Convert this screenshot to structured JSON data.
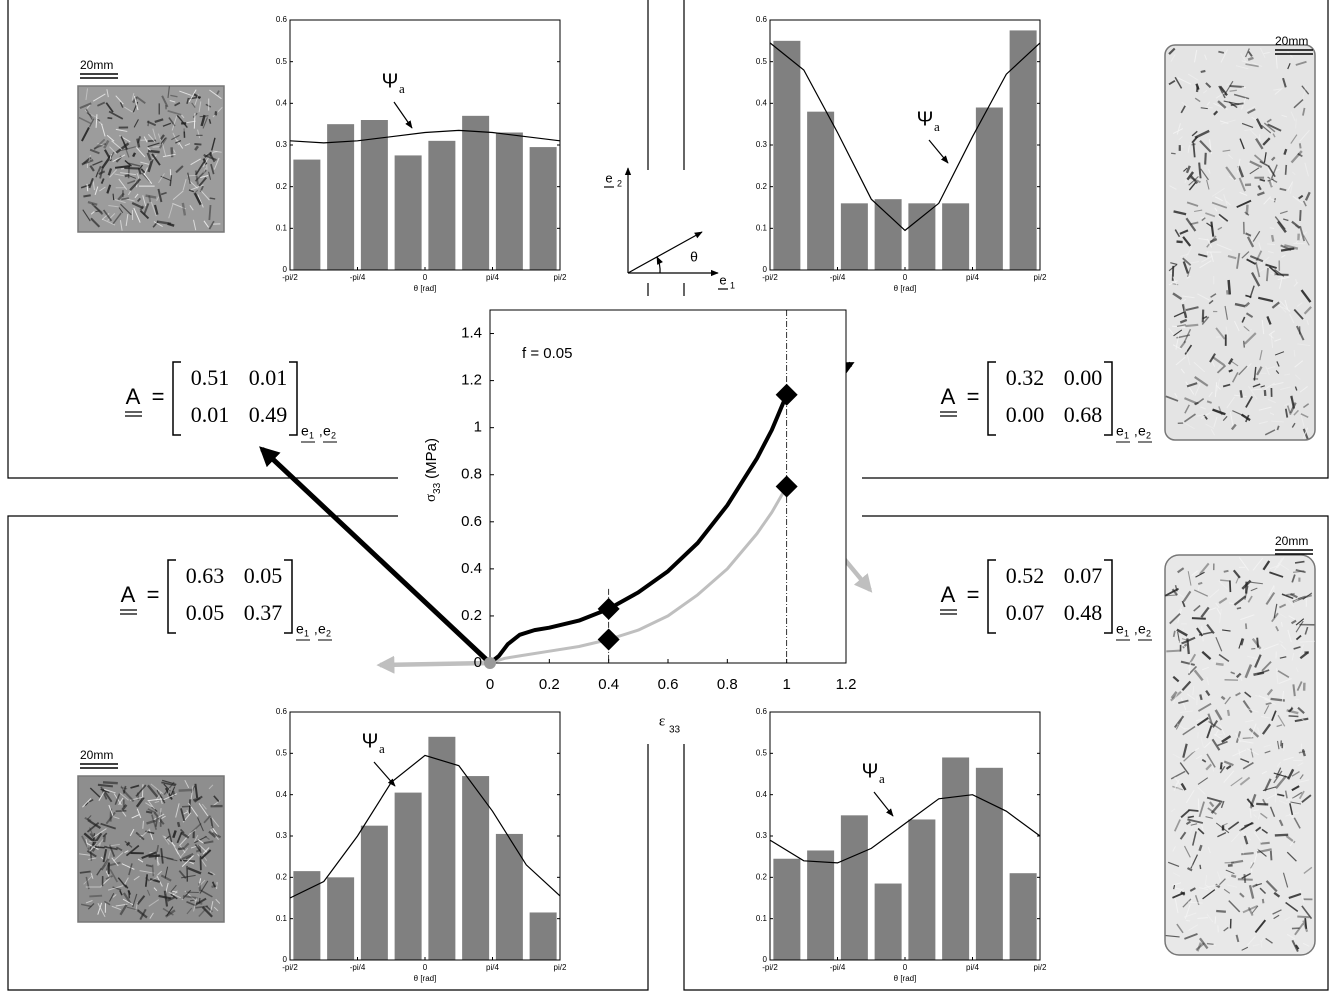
{
  "chart_data": [
    {
      "type": "histogram",
      "xlabel": "θ [rad]",
      "color": "#808080",
      "curve_color": "#000000",
      "annotation": "Ψ",
      "annotation_sub": "a",
      "bins": [
        -1.5708,
        -1.1781,
        -0.7854,
        -0.3927,
        0,
        0.3927,
        0.7854,
        1.1781,
        1.5708
      ],
      "values": [
        0.265,
        0.35,
        0.36,
        0.275,
        0.31,
        0.37,
        0.33,
        0.295
      ],
      "curve": {
        "x": [
          -1.5708,
          -1.1781,
          -0.7854,
          -0.3927,
          0,
          0.3927,
          0.7854,
          1.1781,
          1.5708
        ],
        "values": [
          0.31,
          0.305,
          0.31,
          0.32,
          0.33,
          0.335,
          0.33,
          0.32,
          0.31
        ]
      },
      "xlim": [
        -1.5708,
        1.5708
      ],
      "ylim": [
        0,
        0.6
      ],
      "xticks": [
        {
          "value": -1.5708,
          "label": "-pi/2"
        },
        {
          "value": -0.7854,
          "label": "-pi/4"
        },
        0,
        {
          "value": 0.7854,
          "label": "pi/4"
        },
        {
          "value": 1.5708,
          "label": "pi/2"
        }
      ],
      "yticks": [
        0,
        0.1,
        0.2,
        0.3,
        0.4,
        0.5,
        0.6
      ]
    },
    {
      "type": "histogram",
      "xlabel": "θ [rad]",
      "color": "#808080",
      "curve_color": "#000000",
      "annotation": "Ψ",
      "annotation_sub": "a",
      "bins": [
        -1.5708,
        -1.1781,
        -0.7854,
        -0.3927,
        0,
        0.3927,
        0.7854,
        1.1781,
        1.5708
      ],
      "values": [
        0.55,
        0.38,
        0.16,
        0.17,
        0.16,
        0.16,
        0.39,
        0.575
      ],
      "curve": {
        "x": [
          -1.5708,
          -1.1781,
          -0.7854,
          -0.3927,
          0,
          0.3927,
          0.7854,
          1.1781,
          1.5708
        ],
        "values": [
          0.545,
          0.48,
          0.33,
          0.17,
          0.095,
          0.16,
          0.32,
          0.47,
          0.545
        ]
      },
      "xlim": [
        -1.5708,
        1.5708
      ],
      "ylim": [
        0,
        0.6
      ],
      "xticks": [
        {
          "value": -1.5708,
          "label": "-pi/2"
        },
        {
          "value": -0.7854,
          "label": "-pi/4"
        },
        0,
        {
          "value": 0.7854,
          "label": "pi/4"
        },
        {
          "value": 1.5708,
          "label": "pi/2"
        }
      ],
      "yticks": [
        0,
        0.1,
        0.2,
        0.3,
        0.4,
        0.5,
        0.6
      ]
    },
    {
      "type": "histogram",
      "xlabel": "θ [rad]",
      "color": "#808080",
      "curve_color": "#000000",
      "annotation": "Ψ",
      "annotation_sub": "a",
      "bins": [
        -1.5708,
        -1.1781,
        -0.7854,
        -0.3927,
        0,
        0.3927,
        0.7854,
        1.1781,
        1.5708
      ],
      "values": [
        0.215,
        0.2,
        0.325,
        0.405,
        0.54,
        0.445,
        0.305,
        0.115
      ],
      "curve": {
        "x": [
          -1.5708,
          -1.1781,
          -0.7854,
          -0.3927,
          0,
          0.3927,
          0.7854,
          1.1781,
          1.5708
        ],
        "values": [
          0.15,
          0.19,
          0.3,
          0.43,
          0.495,
          0.47,
          0.36,
          0.23,
          0.155
        ]
      },
      "xlim": [
        -1.5708,
        1.5708
      ],
      "ylim": [
        0,
        0.6
      ],
      "xticks": [
        {
          "value": -1.5708,
          "label": "-pi/2"
        },
        {
          "value": -0.7854,
          "label": "-pi/4"
        },
        0,
        {
          "value": 0.7854,
          "label": "pi/4"
        },
        {
          "value": 1.5708,
          "label": "pi/2"
        }
      ],
      "yticks": [
        0,
        0.1,
        0.2,
        0.3,
        0.4,
        0.5,
        0.6
      ]
    },
    {
      "type": "histogram",
      "xlabel": "θ [rad]",
      "color": "#808080",
      "curve_color": "#000000",
      "annotation": "Ψ",
      "annotation_sub": "a",
      "bins": [
        -1.5708,
        -1.1781,
        -0.7854,
        -0.3927,
        0,
        0.3927,
        0.7854,
        1.1781,
        1.5708
      ],
      "values": [
        0.245,
        0.265,
        0.35,
        0.185,
        0.34,
        0.49,
        0.465,
        0.21
      ],
      "curve": {
        "x": [
          -1.5708,
          -1.1781,
          -0.7854,
          -0.3927,
          0,
          0.3927,
          0.7854,
          1.1781,
          1.5708
        ],
        "values": [
          0.29,
          0.24,
          0.235,
          0.27,
          0.33,
          0.39,
          0.4,
          0.36,
          0.3
        ]
      },
      "xlim": [
        -1.5708,
        1.5708
      ],
      "ylim": [
        0,
        0.6
      ],
      "xticks": [
        {
          "value": -1.5708,
          "label": "-pi/2"
        },
        {
          "value": -0.7854,
          "label": "-pi/4"
        },
        0,
        {
          "value": 0.7854,
          "label": "pi/4"
        },
        {
          "value": 1.5708,
          "label": "pi/2"
        }
      ],
      "yticks": [
        0,
        0.1,
        0.2,
        0.3,
        0.4,
        0.5,
        0.6
      ]
    },
    {
      "type": "line",
      "annotation": "f = 0.05",
      "xlabel": "ε",
      "xlabel_sub": "33",
      "ylabel": "σ",
      "ylabel_sub": "33",
      "ylabel_unit": "(MPa)",
      "xlim": [
        0,
        1.2
      ],
      "ylim": [
        0,
        1.5
      ],
      "xticks": [
        0,
        0.2,
        0.4,
        0.6,
        0.8,
        1,
        1.2
      ],
      "yticks": [
        0,
        0.2,
        0.4,
        0.6,
        0.8,
        1,
        1.2,
        1.4
      ],
      "series": [
        {
          "color": "#000000",
          "x": [
            0,
            0.03,
            0.06,
            0.1,
            0.15,
            0.2,
            0.3,
            0.4,
            0.5,
            0.6,
            0.7,
            0.8,
            0.9,
            0.95,
            1.0
          ],
          "values": [
            0,
            0.03,
            0.08,
            0.12,
            0.14,
            0.15,
            0.18,
            0.23,
            0.3,
            0.39,
            0.51,
            0.67,
            0.87,
            0.99,
            1.14
          ],
          "marker_x": [
            0.4,
            1
          ],
          "marker_values": [
            0.23,
            1.14
          ]
        },
        {
          "color": "#bfbfbf",
          "x": [
            0,
            0.05,
            0.1,
            0.2,
            0.3,
            0.4,
            0.5,
            0.6,
            0.7,
            0.8,
            0.9,
            0.95,
            1.0
          ],
          "values": [
            0,
            0.02,
            0.03,
            0.05,
            0.07,
            0.1,
            0.14,
            0.2,
            0.29,
            0.4,
            0.55,
            0.64,
            0.75
          ],
          "marker_x": [
            0.4,
            1
          ],
          "marker_values": [
            0.1,
            0.75
          ]
        }
      ]
    }
  ],
  "matrices": [
    {
      "symbol": "A",
      "relation": "=",
      "rows": [
        [
          "0.51",
          "0.01"
        ],
        [
          "0.01",
          "0.49"
        ]
      ],
      "basis": [
        {
          "base": "e",
          "index": "1"
        },
        {
          "base": "e",
          "index": "2"
        }
      ],
      "separator": ","
    },
    {
      "symbol": "A",
      "relation": "=",
      "rows": [
        [
          "0.32",
          "0.00"
        ],
        [
          "0.00",
          "0.68"
        ]
      ],
      "basis": [
        {
          "base": "e",
          "index": "1"
        },
        {
          "base": "e",
          "index": "2"
        }
      ],
      "separator": ","
    },
    {
      "symbol": "A",
      "relation": "=",
      "rows": [
        [
          "0.63",
          "0.05"
        ],
        [
          "0.05",
          "0.37"
        ]
      ],
      "basis": [
        {
          "base": "e",
          "index": "1"
        },
        {
          "base": "e",
          "index": "2"
        }
      ],
      "separator": ","
    },
    {
      "symbol": "A",
      "relation": "=",
      "rows": [
        [
          "0.52",
          "0.07"
        ],
        [
          "0.07",
          "0.48"
        ]
      ],
      "basis": [
        {
          "base": "e",
          "index": "1"
        },
        {
          "base": "e",
          "index": "2"
        }
      ],
      "separator": ","
    }
  ],
  "scale_labels": [
    "20mm",
    "20mm",
    "20mm",
    "20mm"
  ],
  "coordinate_sketch": {
    "e2": {
      "base": "e",
      "index": "2"
    },
    "e1": {
      "base": "e",
      "index": "1"
    },
    "angle": "θ"
  }
}
